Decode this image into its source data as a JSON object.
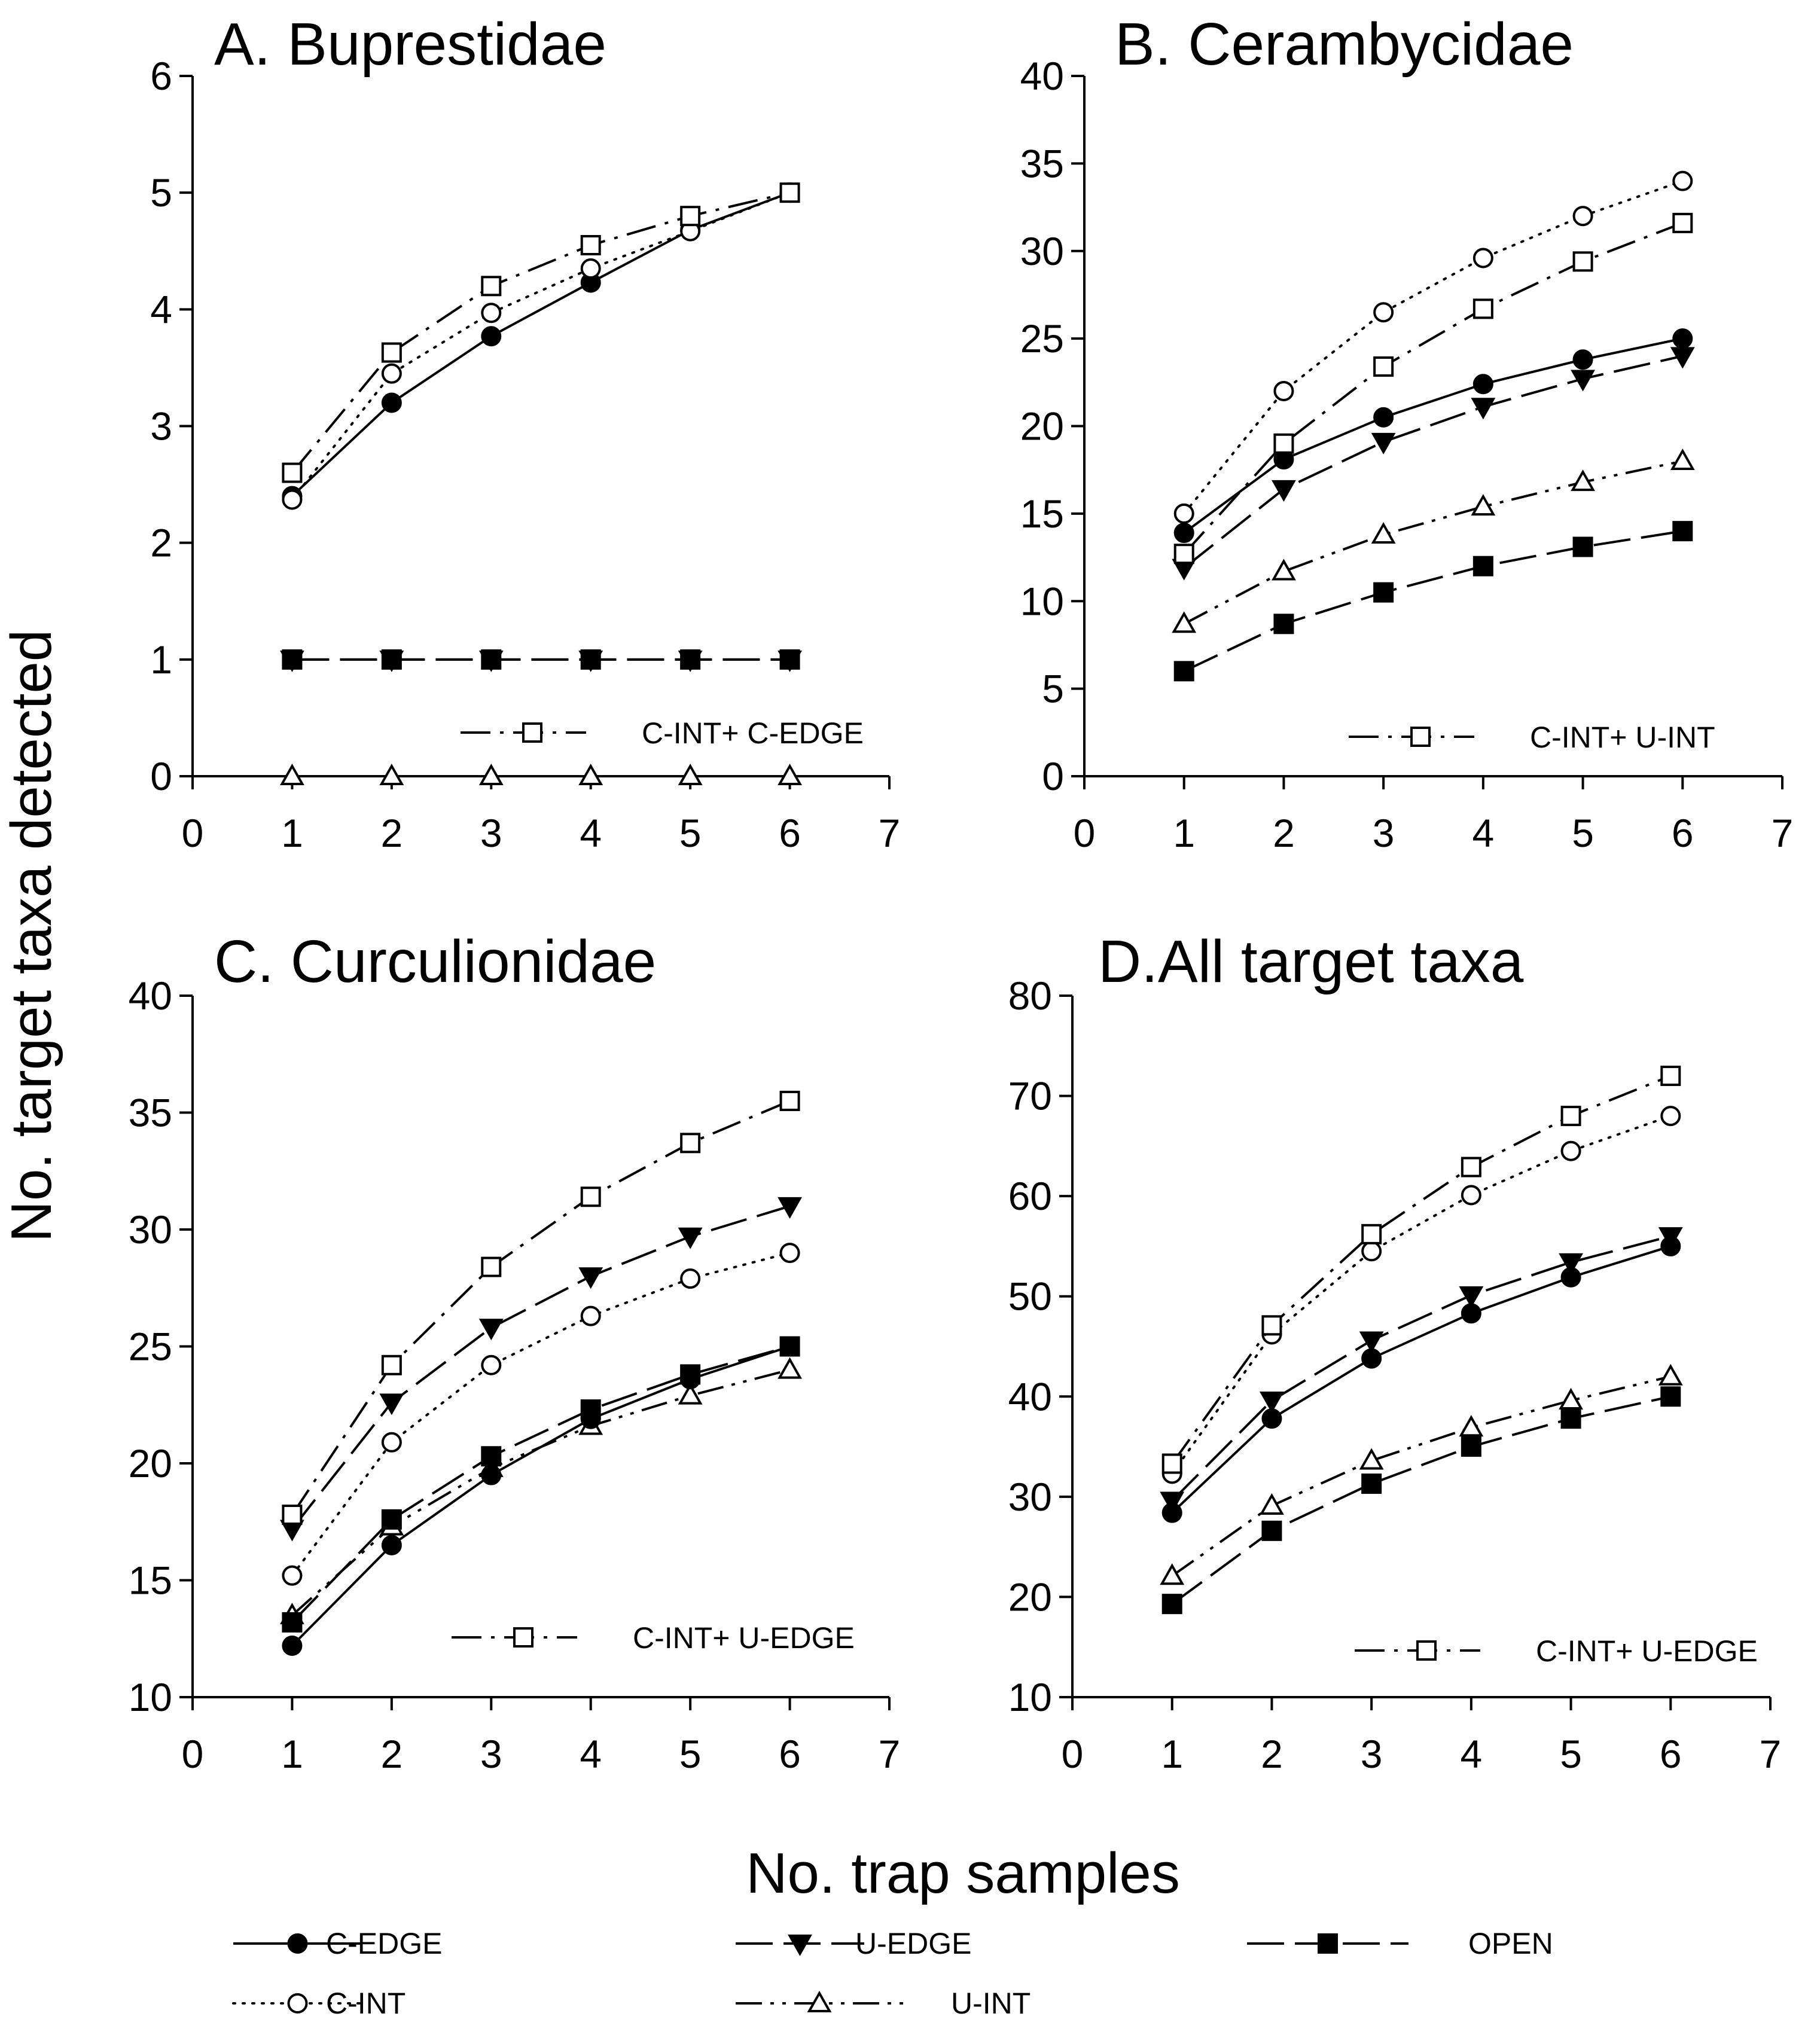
{
  "figure": {
    "y_axis_title": "No. target taxa detected",
    "x_axis_title": "No. trap samples",
    "legend": [
      {
        "key": "C-EDGE",
        "label": "C-EDGE"
      },
      {
        "key": "U-EDGE",
        "label": "U-EDGE"
      },
      {
        "key": "OPEN",
        "label": "OPEN"
      },
      {
        "key": "C-INT",
        "label": "C-INT"
      },
      {
        "key": "U-INT",
        "label": "U-INT"
      }
    ],
    "series_styles": {
      "C-EDGE": {
        "marker": "filled-circle",
        "line": "solid",
        "color": "#000000"
      },
      "C-INT": {
        "marker": "open-circle",
        "line": "dotted",
        "color": "#000000"
      },
      "U-EDGE": {
        "marker": "filled-triangle-down",
        "line": "long-dash",
        "color": "#000000"
      },
      "U-INT": {
        "marker": "open-triangle-up",
        "line": "dash-dot-dot",
        "color": "#000000"
      },
      "OPEN": {
        "marker": "filled-square",
        "line": "long-dash",
        "color": "#000000"
      },
      "COMBO": {
        "marker": "open-square",
        "line": "dash-dot",
        "color": "#000000"
      }
    }
  },
  "chart_data": [
    {
      "type": "line",
      "title": "A. Buprestidae",
      "xlabel": "No. trap samples",
      "ylabel": "No. target taxa detected",
      "xlim": [
        0,
        7
      ],
      "ylim": [
        0,
        6
      ],
      "xticks": [
        0,
        1,
        2,
        3,
        4,
        5,
        6,
        7
      ],
      "yticks": [
        0,
        1,
        2,
        3,
        4,
        5,
        6
      ],
      "x": [
        1,
        2,
        3,
        4,
        5,
        6
      ],
      "combo_label": "C-INT+ C-EDGE",
      "series": [
        {
          "name": "C-EDGE",
          "values": [
            2.4,
            3.2,
            3.77,
            4.23,
            4.68,
            5.0
          ]
        },
        {
          "name": "C-INT",
          "values": [
            2.37,
            3.45,
            3.97,
            4.35,
            4.67,
            5.0
          ]
        },
        {
          "name": "U-EDGE",
          "values": [
            1,
            1,
            1,
            1,
            1,
            1
          ]
        },
        {
          "name": "OPEN",
          "values": [
            1,
            1,
            1,
            1,
            1,
            1
          ]
        },
        {
          "name": "U-INT",
          "values": [
            0,
            0,
            0,
            0,
            0,
            0
          ]
        },
        {
          "name": "COMBO",
          "values": [
            2.6,
            3.63,
            4.2,
            4.55,
            4.8,
            5.0
          ]
        }
      ]
    },
    {
      "type": "line",
      "title": "B. Cerambycidae",
      "xlabel": "No. trap samples",
      "ylabel": "No. target taxa detected",
      "xlim": [
        0,
        7
      ],
      "ylim": [
        0,
        40
      ],
      "xticks": [
        0,
        1,
        2,
        3,
        4,
        5,
        6,
        7
      ],
      "yticks": [
        0,
        5,
        10,
        15,
        20,
        25,
        30,
        35,
        40
      ],
      "x": [
        1,
        2,
        3,
        4,
        5,
        6
      ],
      "combo_label": "C-INT+ U-INT",
      "series": [
        {
          "name": "C-EDGE",
          "values": [
            13.9,
            18.1,
            20.5,
            22.4,
            23.8,
            25.0
          ]
        },
        {
          "name": "C-INT",
          "values": [
            15.0,
            22.0,
            26.5,
            29.6,
            32.0,
            34.0
          ]
        },
        {
          "name": "U-EDGE",
          "values": [
            11.9,
            16.4,
            19.1,
            21.1,
            22.7,
            24.0
          ]
        },
        {
          "name": "OPEN",
          "values": [
            6.0,
            8.7,
            10.5,
            12.0,
            13.1,
            14.0
          ]
        },
        {
          "name": "U-INT",
          "values": [
            8.7,
            11.7,
            13.8,
            15.4,
            16.8,
            18.0
          ]
        },
        {
          "name": "COMBO",
          "values": [
            12.7,
            19.0,
            23.4,
            26.7,
            29.4,
            31.6
          ]
        }
      ]
    },
    {
      "type": "line",
      "title": "C. Curculionidae",
      "xlabel": "No. trap samples",
      "ylabel": "No. target taxa detected",
      "xlim": [
        0,
        7
      ],
      "ylim": [
        10,
        40
      ],
      "xticks": [
        0,
        1,
        2,
        3,
        4,
        5,
        6,
        7
      ],
      "yticks": [
        10,
        15,
        20,
        25,
        30,
        35,
        40
      ],
      "x": [
        1,
        2,
        3,
        4,
        5,
        6
      ],
      "combo_label": "C-INT+ U-EDGE",
      "series": [
        {
          "name": "C-EDGE",
          "values": [
            12.2,
            16.5,
            19.5,
            21.9,
            23.6,
            25.0
          ]
        },
        {
          "name": "C-INT",
          "values": [
            15.2,
            20.9,
            24.2,
            26.3,
            27.9,
            29.0
          ]
        },
        {
          "name": "U-EDGE",
          "values": [
            17.2,
            22.6,
            25.8,
            28.0,
            29.7,
            31.0
          ]
        },
        {
          "name": "OPEN",
          "values": [
            13.2,
            17.6,
            20.3,
            22.3,
            23.8,
            25.0
          ]
        },
        {
          "name": "U-INT",
          "values": [
            13.5,
            17.3,
            19.8,
            21.6,
            22.9,
            24.0
          ]
        },
        {
          "name": "COMBO",
          "values": [
            17.8,
            24.2,
            28.4,
            31.4,
            33.7,
            35.5
          ]
        }
      ]
    },
    {
      "type": "line",
      "title": "D.All target taxa",
      "xlabel": "No. trap samples",
      "ylabel": "No. target taxa detected",
      "xlim": [
        0,
        7
      ],
      "ylim": [
        10,
        80
      ],
      "xticks": [
        0,
        1,
        2,
        3,
        4,
        5,
        6,
        7
      ],
      "yticks": [
        10,
        20,
        30,
        40,
        50,
        60,
        70,
        80
      ],
      "x": [
        1,
        2,
        3,
        4,
        5,
        6
      ],
      "combo_label": "C-INT+ U-EDGE",
      "series": [
        {
          "name": "C-EDGE",
          "values": [
            28.4,
            37.8,
            43.8,
            48.3,
            51.9,
            55.0
          ]
        },
        {
          "name": "C-INT",
          "values": [
            32.3,
            46.2,
            54.5,
            60.1,
            64.5,
            68.0
          ]
        },
        {
          "name": "U-EDGE",
          "values": [
            29.6,
            39.6,
            45.6,
            50.1,
            53.4,
            56.0
          ]
        },
        {
          "name": "OPEN",
          "values": [
            19.3,
            26.6,
            31.3,
            35.0,
            37.8,
            40.0
          ]
        },
        {
          "name": "U-INT",
          "values": [
            22.1,
            29.1,
            33.6,
            36.9,
            39.6,
            42.0
          ]
        },
        {
          "name": "COMBO",
          "values": [
            33.3,
            47.1,
            56.2,
            62.9,
            68.0,
            72.0
          ]
        }
      ]
    }
  ]
}
